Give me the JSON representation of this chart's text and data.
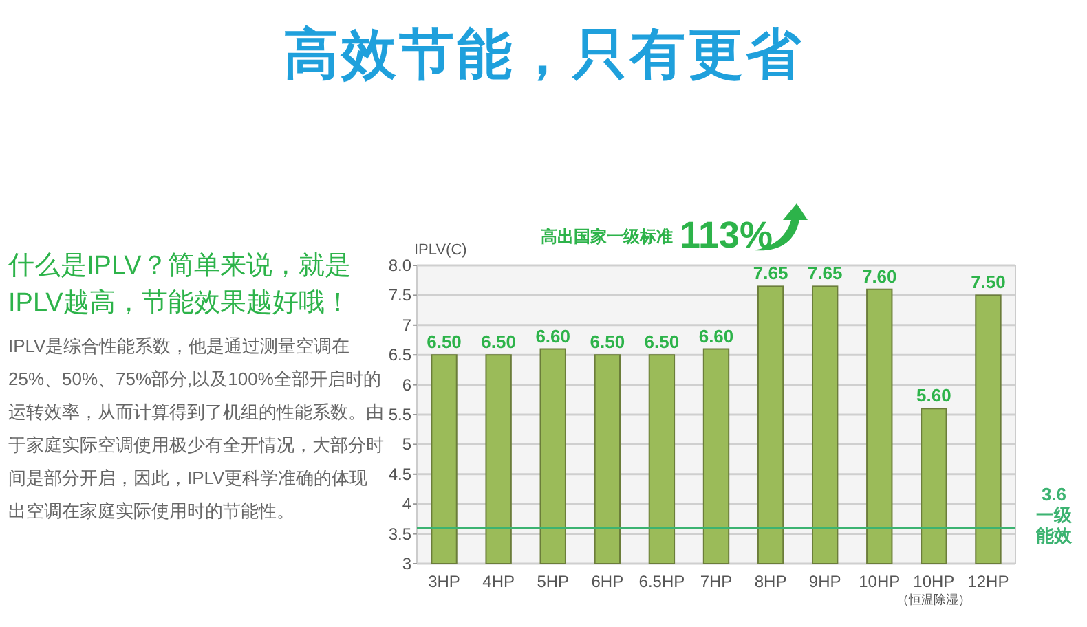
{
  "chart_data": {
    "type": "bar",
    "title": "高效节能，只有更省",
    "ylabel": "IPLV(C)",
    "categories": [
      "3HP",
      "4HP",
      "5HP",
      "6HP",
      "6.5HP",
      "7HP",
      "8HP",
      "9HP",
      "10HP",
      "10HP\n（恒温除湿）",
      "12HP"
    ],
    "values": [
      6.5,
      6.5,
      6.6,
      6.5,
      6.5,
      6.6,
      7.65,
      7.65,
      7.6,
      5.6,
      7.5
    ],
    "value_labels": [
      "6.50",
      "6.50",
      "6.60",
      "6.50",
      "6.50",
      "6.60",
      "7.65",
      "7.65",
      "7.60",
      "5.60",
      "7.50"
    ],
    "color": "#9bbb59",
    "ylim": [
      3,
      8
    ],
    "yticks": [
      3,
      3.5,
      4,
      4.5,
      5,
      5.5,
      6,
      6.5,
      7,
      7.5,
      {
        "value": 8,
        "label": "8.0"
      }
    ],
    "grid": "y",
    "ref_lines": [
      {
        "axis": "y",
        "value": 3.6,
        "label": "3.6\n一级能效",
        "color": "#3cb371"
      }
    ],
    "annotations": [
      "高出国家一级标准",
      "113%",
      "什么是IPLV？简单来说，就是IPLV越高，节能效果越好哦！",
      "IPLV是综合性能系数，他是通过测量空调在25%、50%、75%部分,以及100%全部开启时的运转效率，从而计算得到了机组的性能系数。由于家庭实际空调使用极少有全开情况，大部分时间是部分开启，因此，IPLV更科学准确的体现出空调在家庭实际使用时的节能性。"
    ]
  }
}
